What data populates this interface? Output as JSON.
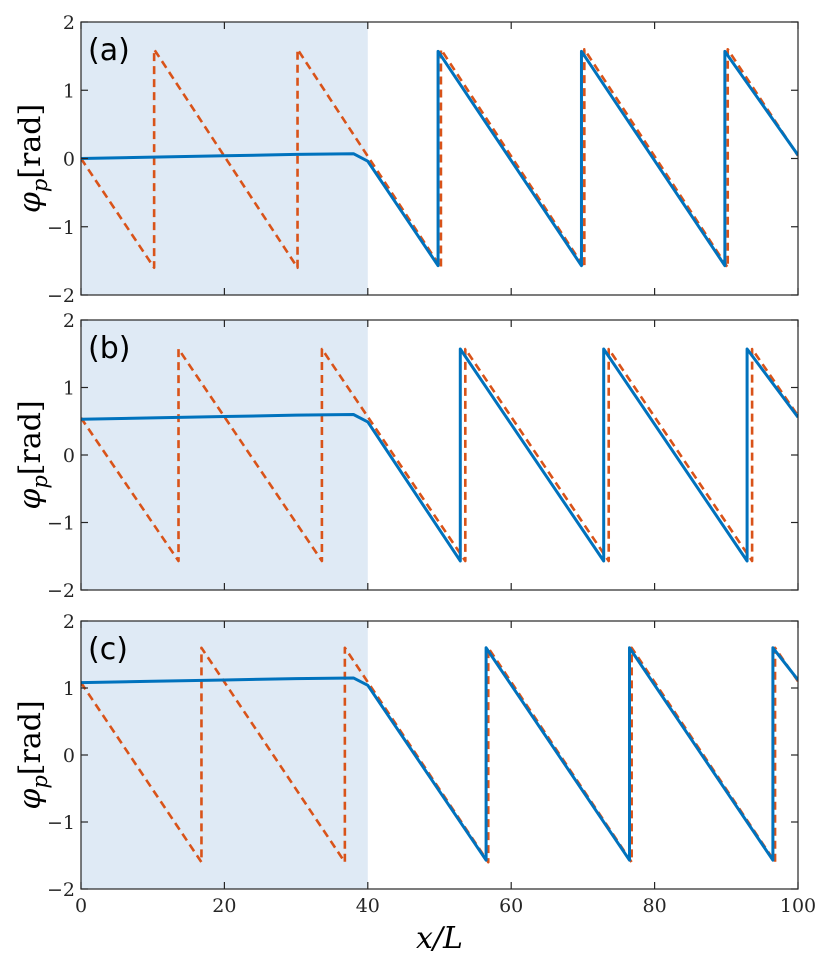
{
  "chart_data": [
    {
      "type": "line",
      "panel_label": "(a)",
      "ylabel_symbol": "φ",
      "ylabel_subscript": "p",
      "ylabel_unit": "[rad]",
      "xlim": [
        0,
        100
      ],
      "ylim": [
        -2,
        2
      ],
      "xticks": [
        0,
        20,
        40,
        60,
        80,
        100
      ],
      "yticks": [
        -2,
        -1,
        0,
        1,
        2
      ],
      "shaded_region": [
        0,
        40
      ],
      "shaded_color": "#dfeaf5",
      "series": [
        {
          "style": "solid",
          "color": "#0072bd",
          "x": [
            0,
            10,
            20,
            30,
            38,
            40,
            49.8,
            49.8,
            69.8,
            69.8,
            89.8,
            89.8,
            100
          ],
          "y": [
            0.0,
            0.02,
            0.04,
            0.06,
            0.07,
            -0.04,
            -1.57,
            1.57,
            -1.57,
            1.57,
            -1.57,
            1.57,
            0.05
          ]
        },
        {
          "style": "dashed",
          "color": "#d95319",
          "x": [
            0,
            10.2,
            10.2,
            30.2,
            30.2,
            50.2,
            50.2,
            70.2,
            70.2,
            90.2,
            90.2,
            100
          ],
          "y": [
            0.0,
            -1.6,
            1.6,
            -1.6,
            1.6,
            -1.6,
            1.6,
            -1.6,
            1.6,
            -1.6,
            1.6,
            0.04
          ]
        }
      ]
    },
    {
      "type": "line",
      "panel_label": "(b)",
      "ylabel_symbol": "φ",
      "ylabel_subscript": "p",
      "ylabel_unit": "[rad]",
      "xlim": [
        0,
        100
      ],
      "ylim": [
        -2,
        2
      ],
      "xticks": [
        0,
        20,
        40,
        60,
        80,
        100
      ],
      "yticks": [
        -2,
        -1,
        0,
        1,
        2
      ],
      "shaded_region": [
        0,
        40
      ],
      "shaded_color": "#dfeaf5",
      "series": [
        {
          "style": "solid",
          "color": "#0072bd",
          "x": [
            0,
            10,
            20,
            30,
            38,
            40,
            52.9,
            52.9,
            72.9,
            72.9,
            92.9,
            92.9,
            100
          ],
          "y": [
            0.53,
            0.55,
            0.57,
            0.59,
            0.6,
            0.49,
            -1.57,
            1.57,
            -1.57,
            1.57,
            -1.57,
            1.57,
            0.56
          ]
        },
        {
          "style": "dashed",
          "color": "#d95319",
          "x": [
            0,
            13.6,
            13.6,
            33.6,
            33.6,
            53.6,
            53.6,
            73.6,
            73.6,
            93.6,
            93.6,
            100
          ],
          "y": [
            0.55,
            -1.57,
            1.57,
            -1.57,
            1.57,
            -1.57,
            1.57,
            -1.57,
            1.57,
            -1.57,
            1.57,
            0.58
          ]
        }
      ]
    },
    {
      "type": "line",
      "panel_label": "(c)",
      "ylabel_symbol": "φ",
      "ylabel_subscript": "p",
      "ylabel_unit": "[rad]",
      "xlabel_symbol": "x/L",
      "xlim": [
        0,
        100
      ],
      "ylim": [
        -2,
        2
      ],
      "xticks": [
        0,
        20,
        40,
        60,
        80,
        100
      ],
      "yticks": [
        -2,
        -1,
        0,
        1,
        2
      ],
      "shaded_region": [
        0,
        40
      ],
      "shaded_color": "#dfeaf5",
      "series": [
        {
          "style": "solid",
          "color": "#0072bd",
          "x": [
            0,
            10,
            20,
            30,
            38,
            40,
            56.5,
            56.5,
            76.5,
            76.5,
            96.5,
            96.5,
            100
          ],
          "y": [
            1.08,
            1.1,
            1.12,
            1.14,
            1.15,
            1.04,
            -1.57,
            1.6,
            -1.57,
            1.6,
            -1.57,
            1.6,
            1.12
          ]
        },
        {
          "style": "dashed",
          "color": "#d95319",
          "x": [
            0,
            16.8,
            16.8,
            36.8,
            36.8,
            56.8,
            56.8,
            76.8,
            76.8,
            96.8,
            96.8,
            100
          ],
          "y": [
            1.08,
            -1.6,
            1.6,
            -1.6,
            1.6,
            -1.6,
            1.6,
            -1.6,
            1.6,
            -1.6,
            1.6,
            1.1
          ]
        }
      ]
    }
  ]
}
